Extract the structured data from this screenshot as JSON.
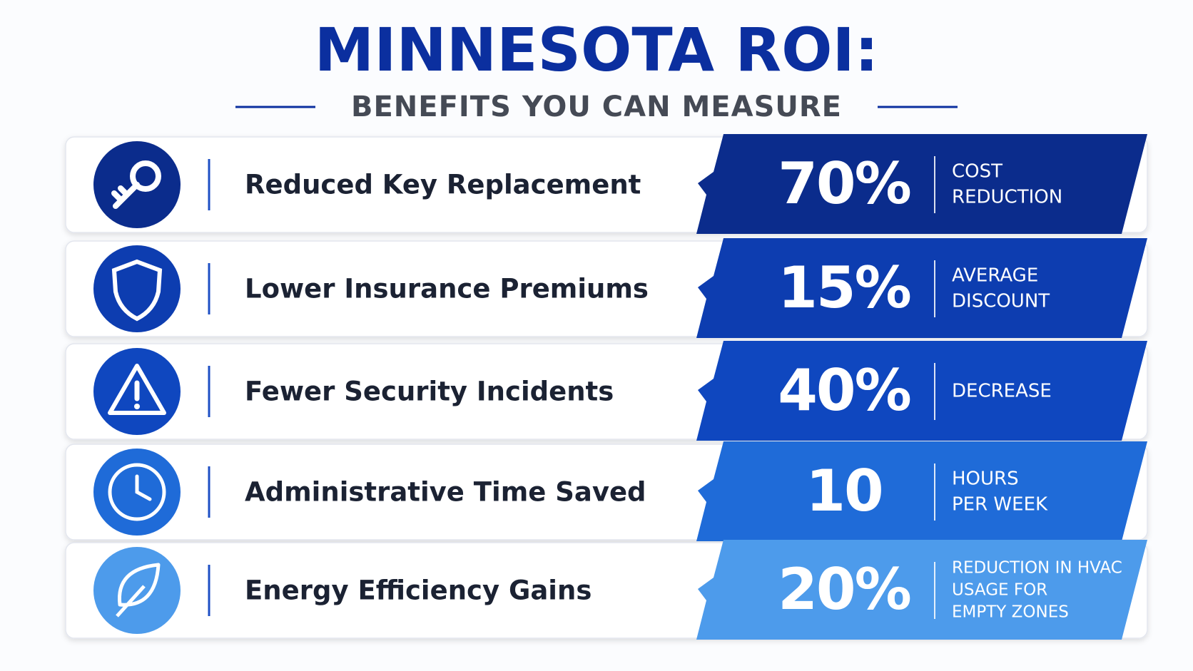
{
  "header": {
    "title": "MINNESOTA ROI:",
    "subtitle": "BENEFITS YOU CAN MEASURE"
  },
  "rows": [
    {
      "label": "Reduced Key Replacement",
      "stat": "70%",
      "note": [
        "COST",
        "REDUCTION"
      ],
      "color": "#0b2c8c",
      "icon": "key"
    },
    {
      "label": "Lower Insurance Premiums",
      "stat": "15%",
      "note": [
        "AVERAGE",
        "DISCOUNT"
      ],
      "color": "#0d3db0",
      "icon": "shield"
    },
    {
      "label": "Fewer Security Incidents",
      "stat": "40%",
      "note": [
        "DECREASE"
      ],
      "color": "#0f47bf",
      "icon": "warning"
    },
    {
      "label": "Administrative Time Saved",
      "stat": "10",
      "note": [
        "HOURS",
        "PER WEEK"
      ],
      "color": "#1f6bd8",
      "icon": "clock"
    },
    {
      "label": "Energy Efficiency Gains",
      "stat": "20%",
      "note": [
        "REDUCTION IN HVAC",
        "USAGE FOR",
        "EMPTY ZONES"
      ],
      "color": "#4d9beb",
      "icon": "leaf"
    }
  ]
}
